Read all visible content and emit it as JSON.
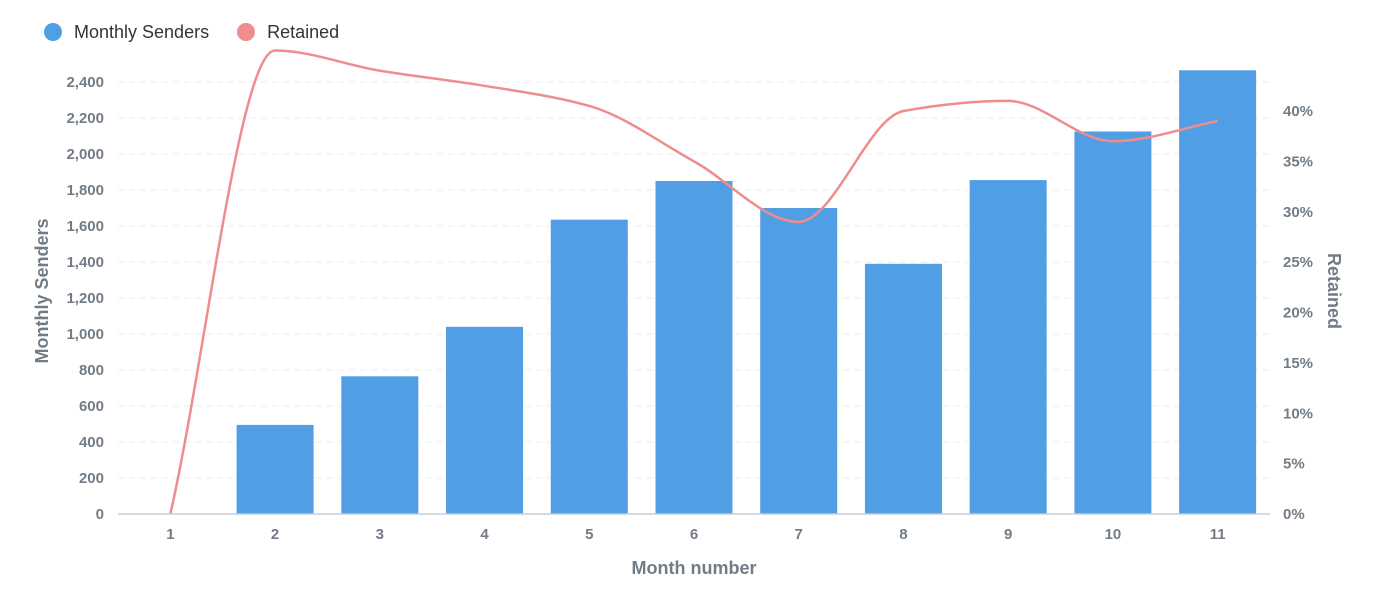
{
  "legend": {
    "items": [
      {
        "label": "Monthly Senders",
        "color": "#509ee3"
      },
      {
        "label": "Retained",
        "color": "#ef8c8c"
      }
    ]
  },
  "colors": {
    "bar": "#509ee3",
    "line": "#ef8c8c",
    "axis_text": "#727c86",
    "grid": "#e9ecef",
    "axis_line": "#c8ced3"
  },
  "chart_data": {
    "type": "bar",
    "categories": [
      "1",
      "2",
      "3",
      "4",
      "5",
      "6",
      "7",
      "8",
      "9",
      "10",
      "11"
    ],
    "series": [
      {
        "name": "Monthly Senders",
        "type": "bar",
        "axis": "left",
        "values": [
          0,
          495,
          765,
          1040,
          1635,
          1850,
          1700,
          1390,
          1855,
          2125,
          2465
        ]
      },
      {
        "name": "Retained",
        "type": "line",
        "axis": "right",
        "values": [
          0,
          46,
          44,
          42.5,
          40.5,
          35,
          29,
          40,
          41,
          37,
          39
        ]
      }
    ],
    "xlabel": "Month number",
    "ylabel": "Monthly Senders",
    "y2label": "Retained",
    "ylim": [
      0,
      2400
    ],
    "y2lim": [
      0,
      40
    ],
    "yticks": [
      "0",
      "200",
      "400",
      "600",
      "800",
      "1,000",
      "1,200",
      "1,400",
      "1,600",
      "1,800",
      "2,000",
      "2,200",
      "2,400"
    ],
    "y2ticks": [
      "0%",
      "5%",
      "10%",
      "15%",
      "20%",
      "25%",
      "30%",
      "35%",
      "40%"
    ],
    "grid": true,
    "legend_position": "top-left"
  }
}
